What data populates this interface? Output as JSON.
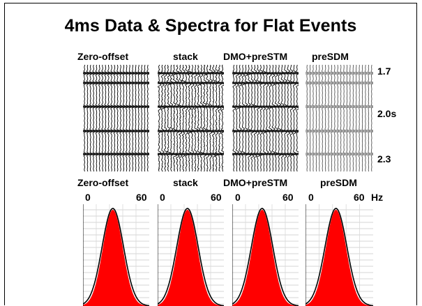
{
  "title": "4ms Data & Spectra for Flat Events",
  "seismic": {
    "labels": [
      "Zero-offset",
      "stack",
      "DMO+preSTM",
      "preSDM"
    ],
    "time_labels": [
      "1.7",
      "2.0s",
      "2.3"
    ]
  },
  "spectra": {
    "labels": [
      "Zero-offset",
      "stack",
      "DMO+preSTM",
      "preSDM"
    ],
    "axis_min": "0",
    "axis_max": "60",
    "unit": "Hz",
    "fill_color": "#ff0000"
  }
}
